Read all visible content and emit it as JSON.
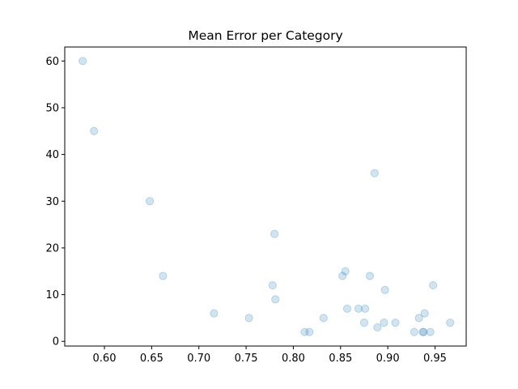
{
  "chart_data": {
    "type": "scatter",
    "title": "Mean Error per Category",
    "xlabel": "",
    "ylabel": "",
    "xlim": [
      0.558,
      0.983
    ],
    "ylim": [
      -1.0,
      63.0
    ],
    "xticks": [
      0.6,
      0.65,
      0.7,
      0.75,
      0.8,
      0.85,
      0.9,
      0.95
    ],
    "xtick_labels": [
      "0.60",
      "0.65",
      "0.70",
      "0.75",
      "0.80",
      "0.85",
      "0.90",
      "0.95"
    ],
    "yticks": [
      0,
      10,
      20,
      30,
      40,
      50,
      60
    ],
    "ytick_labels": [
      "0",
      "10",
      "20",
      "30",
      "40",
      "50",
      "60"
    ],
    "grid": false,
    "marker_color": "#1f77b4",
    "marker_alpha": 0.2,
    "points": [
      {
        "x": 0.577,
        "y": 60
      },
      {
        "x": 0.589,
        "y": 45
      },
      {
        "x": 0.648,
        "y": 30
      },
      {
        "x": 0.662,
        "y": 14
      },
      {
        "x": 0.716,
        "y": 6
      },
      {
        "x": 0.753,
        "y": 5
      },
      {
        "x": 0.778,
        "y": 12
      },
      {
        "x": 0.78,
        "y": 23
      },
      {
        "x": 0.781,
        "y": 9
      },
      {
        "x": 0.812,
        "y": 2
      },
      {
        "x": 0.817,
        "y": 2
      },
      {
        "x": 0.832,
        "y": 5
      },
      {
        "x": 0.852,
        "y": 14
      },
      {
        "x": 0.855,
        "y": 15
      },
      {
        "x": 0.857,
        "y": 7
      },
      {
        "x": 0.869,
        "y": 7
      },
      {
        "x": 0.875,
        "y": 4
      },
      {
        "x": 0.876,
        "y": 7
      },
      {
        "x": 0.881,
        "y": 14
      },
      {
        "x": 0.886,
        "y": 36
      },
      {
        "x": 0.889,
        "y": 3
      },
      {
        "x": 0.896,
        "y": 4
      },
      {
        "x": 0.897,
        "y": 11
      },
      {
        "x": 0.908,
        "y": 4
      },
      {
        "x": 0.928,
        "y": 2
      },
      {
        "x": 0.933,
        "y": 5
      },
      {
        "x": 0.937,
        "y": 2
      },
      {
        "x": 0.938,
        "y": 2
      },
      {
        "x": 0.939,
        "y": 6
      },
      {
        "x": 0.945,
        "y": 2
      },
      {
        "x": 0.948,
        "y": 12
      },
      {
        "x": 0.966,
        "y": 4
      }
    ]
  }
}
